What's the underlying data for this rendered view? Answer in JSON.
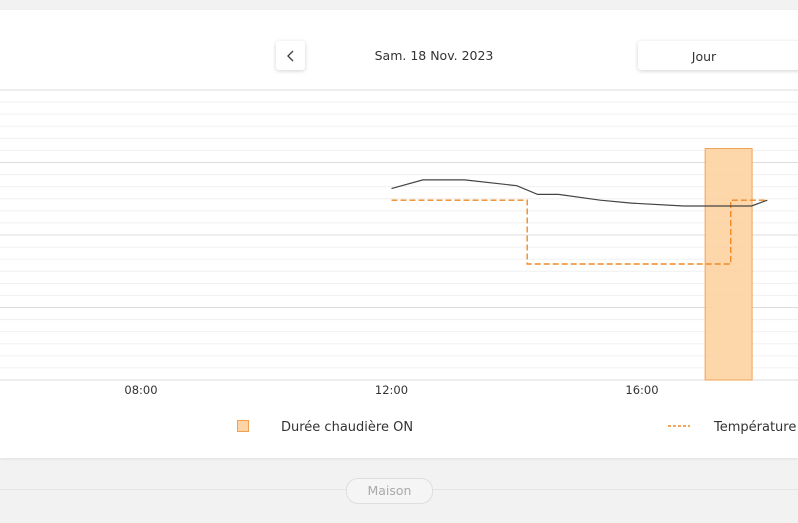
{
  "header": {
    "date": "Sam. 18 Nov. 2023",
    "period": "Jour"
  },
  "colors": {
    "boiler_fill": "#fdd4a6",
    "boiler_stroke": "#f0a050",
    "target_line": "#f08a24",
    "measured_line": "#444444",
    "grid": "#e8e8e8"
  },
  "chart_data": {
    "type": "line",
    "x_ticks": [
      "08:00",
      "12:00",
      "16:00"
    ],
    "series": [
      {
        "name": "Durée chaudière ON",
        "kind": "bar",
        "intervals": [
          [
            "17:00",
            "17:45"
          ]
        ]
      },
      {
        "name": "Température consigne",
        "kind": "step-dashed",
        "points": [
          [
            "12:00",
            0.62
          ],
          [
            "14:10",
            0.62
          ],
          [
            "14:10",
            0.4
          ],
          [
            "17:25",
            0.4
          ],
          [
            "17:25",
            0.62
          ],
          [
            "18:00",
            0.62
          ]
        ]
      },
      {
        "kind": "line",
        "points": [
          [
            "12:00",
            0.66
          ],
          [
            "12:30",
            0.69
          ],
          [
            "13:10",
            0.69
          ],
          [
            "14:00",
            0.67
          ],
          [
            "14:20",
            0.64
          ],
          [
            "14:40",
            0.64
          ],
          [
            "15:20",
            0.62
          ],
          [
            "15:50",
            0.61
          ],
          [
            "16:40",
            0.6
          ],
          [
            "17:45",
            0.6
          ],
          [
            "18:00",
            0.62
          ]
        ]
      }
    ],
    "legend": [
      "Durée chaudière ON",
      "Température c"
    ]
  },
  "footer": {
    "maison": "Maison"
  }
}
